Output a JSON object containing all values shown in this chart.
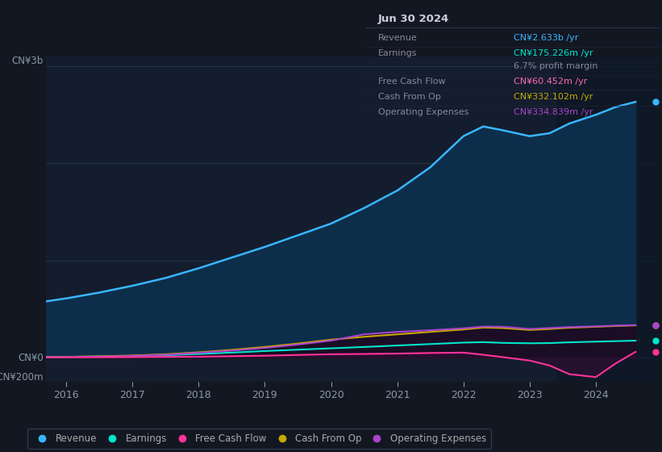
{
  "bg_color": "#131722",
  "chart_bg": "#131d2e",
  "info_box_bg": "#0a0a10",
  "info_box_border": "#333344",
  "info_box_title": "Jun 30 2024",
  "info_box_rows": [
    {
      "label": "Revenue",
      "value": "CN¥2.633b /yr",
      "value_color": "#38b6ff"
    },
    {
      "label": "Earnings",
      "value": "CN¥175.226m /yr",
      "value_color": "#00e5cc"
    },
    {
      "label": "",
      "value": "6.7% profit margin",
      "value_color": "#888899"
    },
    {
      "label": "Free Cash Flow",
      "value": "CN¥60.452m /yr",
      "value_color": "#ff69b4"
    },
    {
      "label": "Cash From Op",
      "value": "CN¥332.102m /yr",
      "value_color": "#c8a800"
    },
    {
      "label": "Operating Expenses",
      "value": "CN¥334.839m /yr",
      "value_color": "#aa44cc"
    }
  ],
  "ylabel_top": "CN¥3b",
  "ylabel_zero": "CN¥0",
  "ylabel_neg": "-CN¥200m",
  "xtick_years": [
    2016,
    2017,
    2018,
    2019,
    2020,
    2021,
    2022,
    2023,
    2024
  ],
  "years": [
    2015.7,
    2016.0,
    2016.5,
    2017.0,
    2017.5,
    2018.0,
    2018.5,
    2019.0,
    2019.5,
    2020.0,
    2020.5,
    2021.0,
    2021.5,
    2022.0,
    2022.3,
    2022.6,
    2023.0,
    2023.3,
    2023.6,
    2024.0,
    2024.3,
    2024.6
  ],
  "revenue": [
    580,
    610,
    670,
    740,
    820,
    920,
    1030,
    1140,
    1260,
    1380,
    1540,
    1720,
    1960,
    2280,
    2380,
    2340,
    2280,
    2310,
    2410,
    2500,
    2580,
    2633
  ],
  "earnings": [
    5,
    8,
    12,
    18,
    25,
    38,
    52,
    68,
    82,
    96,
    110,
    125,
    140,
    155,
    160,
    152,
    148,
    150,
    158,
    165,
    170,
    175
  ],
  "free_cash_flow": [
    2,
    3,
    4,
    6,
    8,
    10,
    15,
    20,
    28,
    35,
    38,
    42,
    48,
    52,
    30,
    5,
    -30,
    -80,
    -170,
    -200,
    -60,
    60
  ],
  "cash_from_op": [
    5,
    8,
    14,
    22,
    35,
    55,
    80,
    110,
    145,
    185,
    215,
    240,
    265,
    290,
    310,
    305,
    285,
    295,
    308,
    318,
    326,
    332
  ],
  "operating_expenses": [
    4,
    6,
    10,
    18,
    30,
    50,
    72,
    100,
    135,
    175,
    240,
    265,
    282,
    302,
    320,
    318,
    295,
    305,
    315,
    322,
    330,
    335
  ],
  "revenue_color": "#38b6ff",
  "earnings_color": "#00e5cc",
  "free_cash_flow_color": "#ff3399",
  "cash_from_op_color": "#c8a800",
  "operating_expenses_color": "#aa44cc",
  "revenue_fill": "#0d2e4a",
  "cash_from_op_fill": "#2a2200",
  "operating_expenses_fill": "#1a0a2a",
  "free_cash_flow_fill": "#2a1030",
  "earnings_fill": "#002a25",
  "ylim_min": -250,
  "ylim_max": 3100,
  "legend_items": [
    {
      "label": "Revenue",
      "color": "#38b6ff"
    },
    {
      "label": "Earnings",
      "color": "#00e5cc"
    },
    {
      "label": "Free Cash Flow",
      "color": "#ff3399"
    },
    {
      "label": "Cash From Op",
      "color": "#c8a800"
    },
    {
      "label": "Operating Expenses",
      "color": "#aa44cc"
    }
  ]
}
